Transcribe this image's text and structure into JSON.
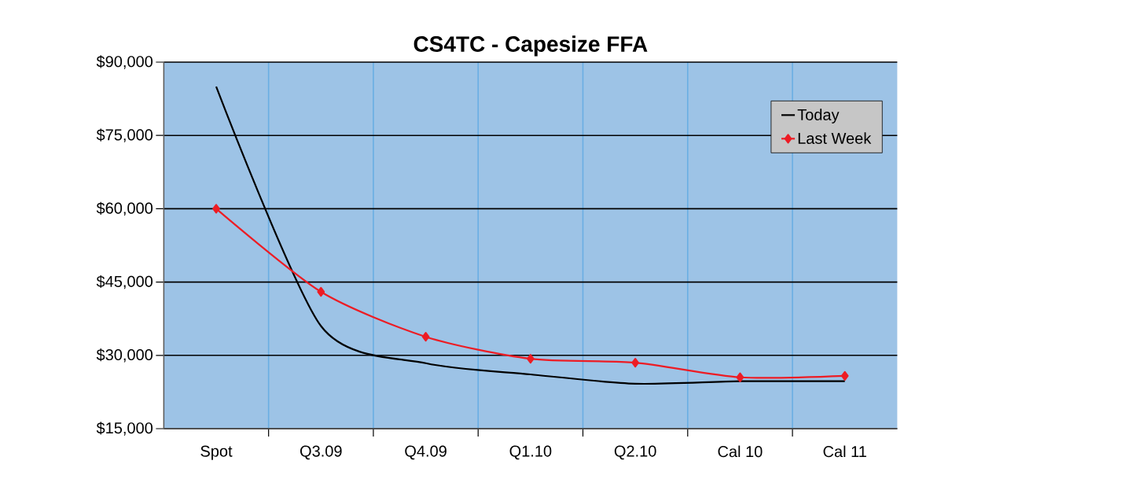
{
  "chart_data": {
    "type": "line",
    "title": "CS4TC - Capesize FFA",
    "categories": [
      "Spot",
      "Q3.09",
      "Q4.09",
      "Q1.10",
      "Q2.10",
      "Cal 10",
      "Cal 11"
    ],
    "series": [
      {
        "name": "Today",
        "color": "#000000",
        "marker": "none",
        "values": [
          85000,
          36000,
          28400,
          26100,
          24200,
          24700,
          24700
        ]
      },
      {
        "name": "Last Week",
        "color": "#ed1c24",
        "marker": "diamond",
        "values": [
          60000,
          43000,
          33800,
          29300,
          28500,
          25500,
          25800
        ]
      }
    ],
    "ylim": [
      15000,
      90000
    ],
    "yticks": [
      {
        "value": 15000,
        "label": "$15,000"
      },
      {
        "value": 30000,
        "label": "$30,000"
      },
      {
        "value": 45000,
        "label": "$45,000"
      },
      {
        "value": 60000,
        "label": "$60,000"
      },
      {
        "value": 75000,
        "label": "$75,000"
      },
      {
        "value": 90000,
        "label": "$90,000"
      }
    ],
    "grid": true,
    "legend": "top right"
  }
}
